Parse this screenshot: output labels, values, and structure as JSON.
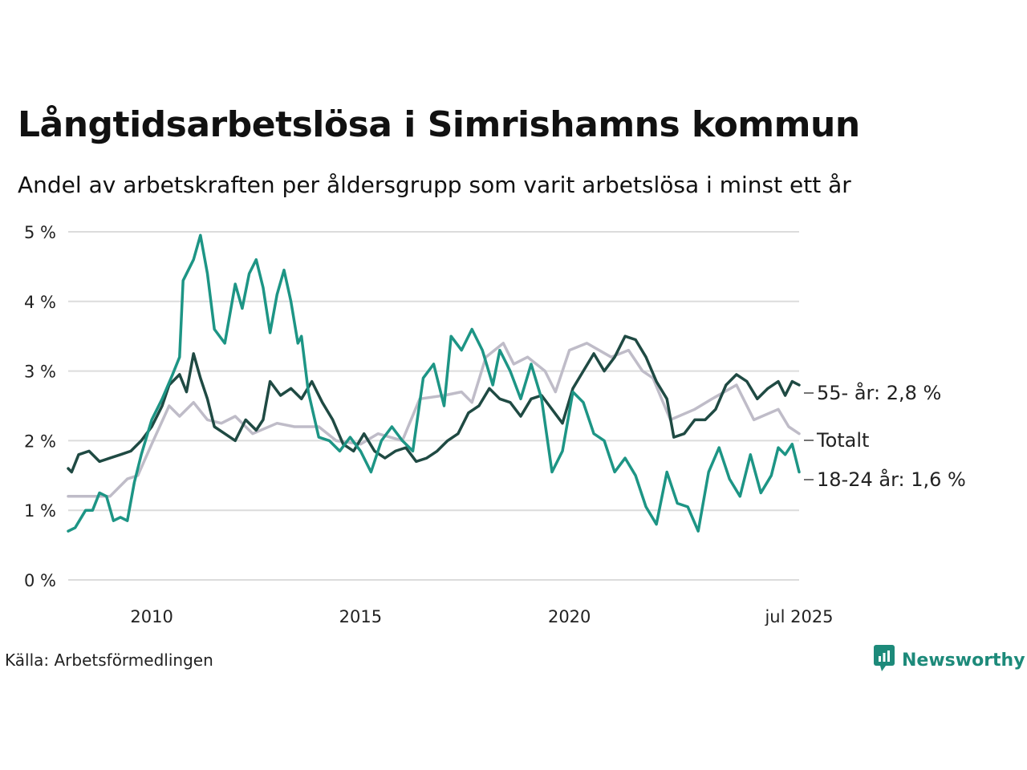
{
  "title": "Långtidsarbetslösa i Simrishamns kommun",
  "subtitle": "Andel av arbetskraften per åldersgrupp som varit arbetslösa i minst ett år",
  "source": "Källa: Arbetsförmedlingen",
  "brand": {
    "name": "Newsworthy",
    "icon": "newsworthy-logo-icon",
    "color": "#1d8a7a"
  },
  "chart_data": {
    "type": "line",
    "x_unit": "date",
    "x_range": [
      "2008-01",
      "2025-07"
    ],
    "ylim": [
      0,
      5
    ],
    "y_ticks": [
      {
        "value": 0,
        "label": "0 %"
      },
      {
        "value": 1,
        "label": "1 %"
      },
      {
        "value": 2,
        "label": "2 %"
      },
      {
        "value": 3,
        "label": "3 %"
      },
      {
        "value": 4,
        "label": "4 %"
      },
      {
        "value": 5,
        "label": "5 %"
      }
    ],
    "x_ticks": [
      {
        "value": "2010-01",
        "label": "2010"
      },
      {
        "value": "2015-01",
        "label": "2015"
      },
      {
        "value": "2020-01",
        "label": "2020"
      },
      {
        "value": "2025-07",
        "label": "jul 2025"
      }
    ],
    "grid": "horizontal",
    "legend": "end-labels",
    "series": [
      {
        "name": "Totalt",
        "color": "#bfbcc8",
        "end_label": "Totalt",
        "points": [
          [
            "2008-01",
            1.2
          ],
          [
            "2008-06",
            1.2
          ],
          [
            "2009-01",
            1.2
          ],
          [
            "2009-06",
            1.45
          ],
          [
            "2009-09",
            1.5
          ],
          [
            "2010-01",
            1.95
          ],
          [
            "2010-06",
            2.5
          ],
          [
            "2010-09",
            2.35
          ],
          [
            "2011-01",
            2.55
          ],
          [
            "2011-05",
            2.3
          ],
          [
            "2011-09",
            2.25
          ],
          [
            "2012-01",
            2.35
          ],
          [
            "2012-06",
            2.1
          ],
          [
            "2013-01",
            2.25
          ],
          [
            "2013-06",
            2.2
          ],
          [
            "2014-01",
            2.2
          ],
          [
            "2014-06",
            2.0
          ],
          [
            "2015-01",
            1.95
          ],
          [
            "2015-06",
            2.1
          ],
          [
            "2016-01",
            2.0
          ],
          [
            "2016-06",
            2.6
          ],
          [
            "2017-01",
            2.65
          ],
          [
            "2017-06",
            2.7
          ],
          [
            "2017-09",
            2.55
          ],
          [
            "2018-01",
            3.2
          ],
          [
            "2018-06",
            3.4
          ],
          [
            "2018-09",
            3.1
          ],
          [
            "2019-01",
            3.2
          ],
          [
            "2019-06",
            3.0
          ],
          [
            "2019-09",
            2.7
          ],
          [
            "2020-01",
            3.3
          ],
          [
            "2020-06",
            3.4
          ],
          [
            "2021-01",
            3.2
          ],
          [
            "2021-06",
            3.3
          ],
          [
            "2021-10",
            3.0
          ],
          [
            "2022-01",
            2.9
          ],
          [
            "2022-06",
            2.3
          ],
          [
            "2023-01",
            2.45
          ],
          [
            "2023-06",
            2.6
          ],
          [
            "2024-01",
            2.8
          ],
          [
            "2024-06",
            2.3
          ],
          [
            "2025-01",
            2.45
          ],
          [
            "2025-04",
            2.2
          ],
          [
            "2025-07",
            2.1
          ]
        ]
      },
      {
        "name": "55- år",
        "color": "#1f4a43",
        "end_label": "55- år: 2,8 %",
        "points": [
          [
            "2008-01",
            1.6
          ],
          [
            "2008-02",
            1.55
          ],
          [
            "2008-04",
            1.8
          ],
          [
            "2008-07",
            1.85
          ],
          [
            "2008-10",
            1.7
          ],
          [
            "2009-01",
            1.75
          ],
          [
            "2009-04",
            1.8
          ],
          [
            "2009-07",
            1.85
          ],
          [
            "2009-10",
            2.0
          ],
          [
            "2010-01",
            2.2
          ],
          [
            "2010-04",
            2.5
          ],
          [
            "2010-06",
            2.8
          ],
          [
            "2010-09",
            2.95
          ],
          [
            "2010-11",
            2.7
          ],
          [
            "2011-01",
            3.25
          ],
          [
            "2011-03",
            2.9
          ],
          [
            "2011-05",
            2.6
          ],
          [
            "2011-07",
            2.2
          ],
          [
            "2011-10",
            2.1
          ],
          [
            "2012-01",
            2.0
          ],
          [
            "2012-04",
            2.3
          ],
          [
            "2012-07",
            2.15
          ],
          [
            "2012-09",
            2.3
          ],
          [
            "2012-11",
            2.85
          ],
          [
            "2013-02",
            2.65
          ],
          [
            "2013-05",
            2.75
          ],
          [
            "2013-08",
            2.6
          ],
          [
            "2013-11",
            2.85
          ],
          [
            "2014-02",
            2.55
          ],
          [
            "2014-05",
            2.3
          ],
          [
            "2014-08",
            1.95
          ],
          [
            "2014-11",
            1.85
          ],
          [
            "2015-02",
            2.1
          ],
          [
            "2015-05",
            1.85
          ],
          [
            "2015-08",
            1.75
          ],
          [
            "2015-11",
            1.85
          ],
          [
            "2016-02",
            1.9
          ],
          [
            "2016-05",
            1.7
          ],
          [
            "2016-08",
            1.75
          ],
          [
            "2016-11",
            1.85
          ],
          [
            "2017-02",
            2.0
          ],
          [
            "2017-05",
            2.1
          ],
          [
            "2017-08",
            2.4
          ],
          [
            "2017-11",
            2.5
          ],
          [
            "2018-02",
            2.75
          ],
          [
            "2018-05",
            2.6
          ],
          [
            "2018-08",
            2.55
          ],
          [
            "2018-11",
            2.35
          ],
          [
            "2019-02",
            2.6
          ],
          [
            "2019-05",
            2.65
          ],
          [
            "2019-08",
            2.45
          ],
          [
            "2019-11",
            2.25
          ],
          [
            "2020-02",
            2.75
          ],
          [
            "2020-05",
            3.0
          ],
          [
            "2020-08",
            3.25
          ],
          [
            "2020-11",
            3.0
          ],
          [
            "2021-02",
            3.2
          ],
          [
            "2021-05",
            3.5
          ],
          [
            "2021-08",
            3.45
          ],
          [
            "2021-11",
            3.2
          ],
          [
            "2022-02",
            2.85
          ],
          [
            "2022-05",
            2.6
          ],
          [
            "2022-07",
            2.05
          ],
          [
            "2022-10",
            2.1
          ],
          [
            "2023-01",
            2.3
          ],
          [
            "2023-04",
            2.3
          ],
          [
            "2023-07",
            2.45
          ],
          [
            "2023-10",
            2.8
          ],
          [
            "2024-01",
            2.95
          ],
          [
            "2024-04",
            2.85
          ],
          [
            "2024-07",
            2.6
          ],
          [
            "2024-10",
            2.75
          ],
          [
            "2025-01",
            2.85
          ],
          [
            "2025-03",
            2.65
          ],
          [
            "2025-05",
            2.85
          ],
          [
            "2025-07",
            2.8
          ]
        ]
      },
      {
        "name": "18-24 år",
        "color": "#1d9585",
        "end_label": "18-24 år: 1,6 %",
        "points": [
          [
            "2008-01",
            0.7
          ],
          [
            "2008-03",
            0.75
          ],
          [
            "2008-06",
            1.0
          ],
          [
            "2008-08",
            1.0
          ],
          [
            "2008-10",
            1.25
          ],
          [
            "2008-12",
            1.2
          ],
          [
            "2009-02",
            0.85
          ],
          [
            "2009-04",
            0.9
          ],
          [
            "2009-06",
            0.85
          ],
          [
            "2009-08",
            1.4
          ],
          [
            "2009-10",
            1.8
          ],
          [
            "2010-01",
            2.3
          ],
          [
            "2010-04",
            2.6
          ],
          [
            "2010-07",
            2.95
          ],
          [
            "2010-09",
            3.2
          ],
          [
            "2010-10",
            4.3
          ],
          [
            "2011-01",
            4.6
          ],
          [
            "2011-03",
            4.95
          ],
          [
            "2011-05",
            4.4
          ],
          [
            "2011-07",
            3.6
          ],
          [
            "2011-10",
            3.4
          ],
          [
            "2012-01",
            4.25
          ],
          [
            "2012-03",
            3.9
          ],
          [
            "2012-05",
            4.4
          ],
          [
            "2012-07",
            4.6
          ],
          [
            "2012-09",
            4.2
          ],
          [
            "2012-11",
            3.55
          ],
          [
            "2013-01",
            4.1
          ],
          [
            "2013-03",
            4.45
          ],
          [
            "2013-05",
            4.0
          ],
          [
            "2013-07",
            3.4
          ],
          [
            "2013-08",
            3.5
          ],
          [
            "2013-10",
            2.7
          ],
          [
            "2014-01",
            2.05
          ],
          [
            "2014-04",
            2.0
          ],
          [
            "2014-07",
            1.85
          ],
          [
            "2014-10",
            2.05
          ],
          [
            "2015-01",
            1.85
          ],
          [
            "2015-04",
            1.55
          ],
          [
            "2015-07",
            2.0
          ],
          [
            "2015-10",
            2.2
          ],
          [
            "2016-01",
            2.0
          ],
          [
            "2016-04",
            1.85
          ],
          [
            "2016-07",
            2.9
          ],
          [
            "2016-10",
            3.1
          ],
          [
            "2017-01",
            2.5
          ],
          [
            "2017-03",
            3.5
          ],
          [
            "2017-06",
            3.3
          ],
          [
            "2017-09",
            3.6
          ],
          [
            "2017-12",
            3.3
          ],
          [
            "2018-03",
            2.8
          ],
          [
            "2018-05",
            3.3
          ],
          [
            "2018-08",
            3.0
          ],
          [
            "2018-11",
            2.6
          ],
          [
            "2019-02",
            3.1
          ],
          [
            "2019-05",
            2.6
          ],
          [
            "2019-08",
            1.55
          ],
          [
            "2019-11",
            1.85
          ],
          [
            "2020-02",
            2.7
          ],
          [
            "2020-05",
            2.55
          ],
          [
            "2020-08",
            2.1
          ],
          [
            "2020-11",
            2.0
          ],
          [
            "2021-02",
            1.55
          ],
          [
            "2021-05",
            1.75
          ],
          [
            "2021-08",
            1.5
          ],
          [
            "2021-11",
            1.05
          ],
          [
            "2022-02",
            0.8
          ],
          [
            "2022-05",
            1.55
          ],
          [
            "2022-08",
            1.1
          ],
          [
            "2022-11",
            1.05
          ],
          [
            "2023-02",
            0.7
          ],
          [
            "2023-05",
            1.55
          ],
          [
            "2023-08",
            1.9
          ],
          [
            "2023-11",
            1.45
          ],
          [
            "2024-02",
            1.2
          ],
          [
            "2024-05",
            1.8
          ],
          [
            "2024-08",
            1.25
          ],
          [
            "2024-11",
            1.5
          ],
          [
            "2025-01",
            1.9
          ],
          [
            "2025-03",
            1.8
          ],
          [
            "2025-05",
            1.95
          ],
          [
            "2025-07",
            1.55
          ]
        ]
      }
    ]
  }
}
